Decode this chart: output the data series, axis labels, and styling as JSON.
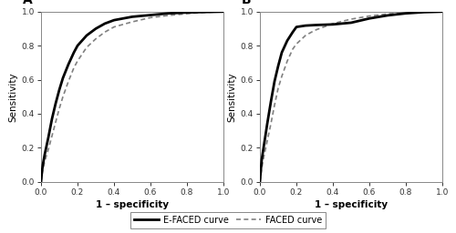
{
  "panel_A_efaced": {
    "x": [
      0.0,
      0.005,
      0.01,
      0.02,
      0.04,
      0.06,
      0.08,
      0.1,
      0.12,
      0.15,
      0.18,
      0.2,
      0.25,
      0.3,
      0.35,
      0.4,
      0.5,
      0.6,
      0.7,
      0.8,
      0.9,
      1.0
    ],
    "y": [
      0.0,
      0.06,
      0.1,
      0.16,
      0.26,
      0.37,
      0.46,
      0.54,
      0.61,
      0.69,
      0.76,
      0.8,
      0.86,
      0.9,
      0.93,
      0.95,
      0.97,
      0.98,
      0.99,
      0.995,
      0.998,
      1.0
    ]
  },
  "panel_A_faced": {
    "x": [
      0.0,
      0.005,
      0.01,
      0.02,
      0.04,
      0.06,
      0.08,
      0.1,
      0.12,
      0.15,
      0.18,
      0.2,
      0.25,
      0.3,
      0.35,
      0.4,
      0.5,
      0.6,
      0.7,
      0.8,
      0.9,
      1.0
    ],
    "y": [
      0.0,
      0.04,
      0.07,
      0.12,
      0.19,
      0.27,
      0.35,
      0.43,
      0.5,
      0.59,
      0.67,
      0.71,
      0.79,
      0.84,
      0.88,
      0.91,
      0.94,
      0.965,
      0.978,
      0.988,
      0.996,
      1.0
    ]
  },
  "panel_B_efaced": {
    "x": [
      0.0,
      0.005,
      0.01,
      0.02,
      0.04,
      0.06,
      0.08,
      0.1,
      0.12,
      0.15,
      0.18,
      0.2,
      0.25,
      0.3,
      0.32,
      0.35,
      0.4,
      0.5,
      0.6,
      0.7,
      0.8,
      0.9,
      1.0
    ],
    "y": [
      0.0,
      0.07,
      0.13,
      0.2,
      0.34,
      0.47,
      0.59,
      0.68,
      0.76,
      0.83,
      0.88,
      0.91,
      0.918,
      0.921,
      0.922,
      0.923,
      0.925,
      0.935,
      0.96,
      0.978,
      0.99,
      0.997,
      1.0
    ]
  },
  "panel_B_faced": {
    "x": [
      0.0,
      0.005,
      0.01,
      0.02,
      0.04,
      0.06,
      0.08,
      0.1,
      0.12,
      0.15,
      0.18,
      0.2,
      0.25,
      0.3,
      0.35,
      0.4,
      0.5,
      0.6,
      0.65,
      0.7,
      0.8,
      0.9,
      1.0
    ],
    "y": [
      0.0,
      0.04,
      0.08,
      0.14,
      0.24,
      0.34,
      0.45,
      0.55,
      0.62,
      0.71,
      0.78,
      0.81,
      0.86,
      0.89,
      0.91,
      0.93,
      0.956,
      0.974,
      0.98,
      0.987,
      0.993,
      0.998,
      1.0
    ]
  },
  "xlabel": "1 – specificity",
  "ylabel": "Sensitivity",
  "label_A": "A",
  "label_B": "B",
  "legend_efaced": "E-FACED curve",
  "legend_faced": "FACED curve",
  "efaced_color": "#000000",
  "faced_color": "#808080",
  "efaced_lw": 2.0,
  "faced_lw": 1.2,
  "tick_fontsize": 6.5,
  "label_fontsize": 7.5,
  "panel_label_fontsize": 10,
  "legend_fontsize": 7
}
